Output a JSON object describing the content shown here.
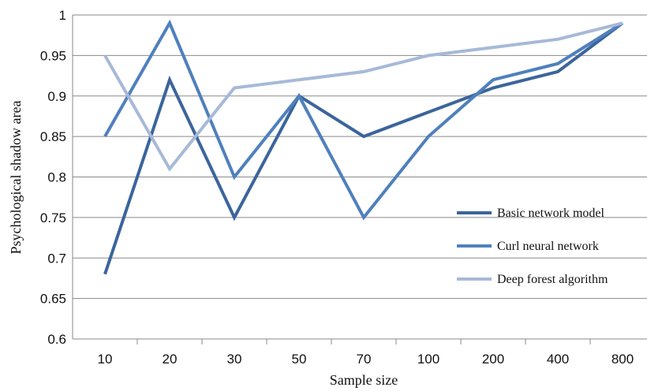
{
  "chart_data": {
    "type": "line",
    "categories": [
      "10",
      "20",
      "30",
      "50",
      "70",
      "100",
      "200",
      "400",
      "800"
    ],
    "series": [
      {
        "name": "Basic network model",
        "color": "#3b659b",
        "values": [
          0.68,
          0.92,
          0.75,
          0.9,
          0.85,
          0.88,
          0.91,
          0.93,
          0.99
        ]
      },
      {
        "name": "Curl neural network",
        "color": "#4f80bd",
        "values": [
          0.85,
          0.99,
          0.8,
          0.9,
          0.75,
          0.85,
          0.92,
          0.94,
          0.99
        ]
      },
      {
        "name": "Deep forest algorithm",
        "color": "#a6b9d8",
        "values": [
          0.95,
          0.81,
          0.91,
          0.92,
          0.93,
          0.95,
          0.96,
          0.97,
          0.99
        ]
      }
    ],
    "xlabel": "Sample size",
    "ylabel": "Psychological shadow area",
    "ylim": [
      0.6,
      1.0
    ],
    "yticks": [
      "0.6",
      "0.65",
      "0.7",
      "0.75",
      "0.8",
      "0.85",
      "0.9",
      "0.95",
      "1"
    ],
    "grid": true,
    "legend_position": "right"
  }
}
